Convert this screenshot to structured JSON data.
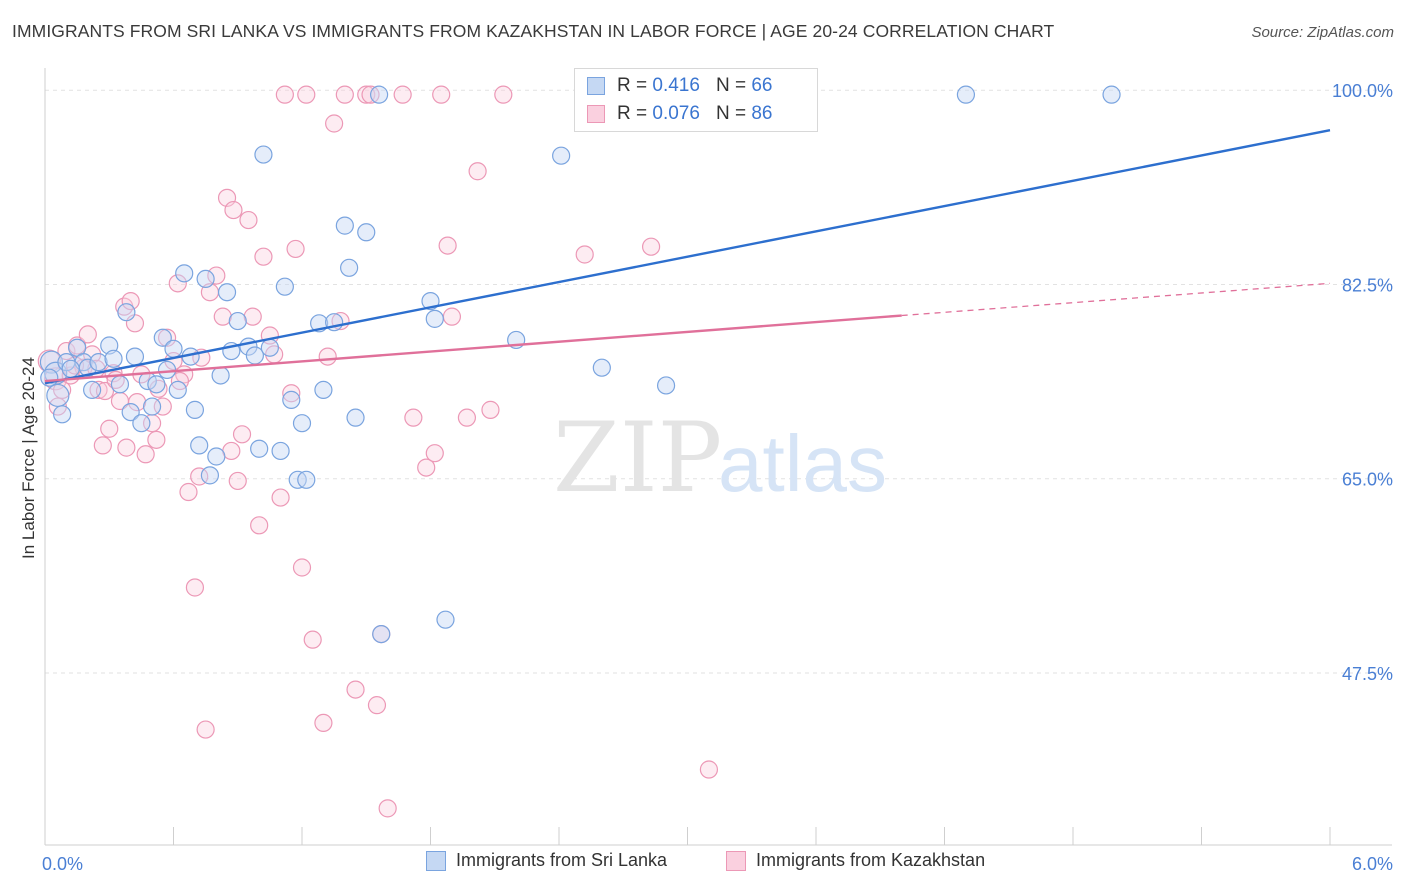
{
  "title": "IMMIGRANTS FROM SRI LANKA VS IMMIGRANTS FROM KAZAKHSTAN IN LABOR FORCE | AGE 20-24 CORRELATION CHART",
  "source": "Source: ZipAtlas.com",
  "watermark": {
    "zip": "ZIP",
    "atlas": "atlas"
  },
  "colors": {
    "blue": "#6f9fe0",
    "blue_line": "#2d6fce",
    "pink": "#ee9ab8",
    "pink_line": "#e0709a",
    "tick_text": "#4a7fd4"
  },
  "legend": {
    "rows": [
      {
        "r_label": "R =",
        "r_value": "0.416",
        "n_label": "N =",
        "n_value": "66"
      },
      {
        "r_label": "R =",
        "r_value": "0.076",
        "n_label": "N =",
        "n_value": "86"
      }
    ]
  },
  "bottom_legend": [
    "Immigrants from Sri Lanka",
    "Immigrants from Kazakhstan"
  ],
  "chart_data": {
    "type": "scatter",
    "xlabel": "",
    "ylabel": "In Labor Force | Age 20-24",
    "xlim": [
      0,
      6.0
    ],
    "ylim": [
      32,
      102
    ],
    "x_tick_labels": [
      "0.0%",
      "6.0%"
    ],
    "y_ticks": [
      47.5,
      65.0,
      82.5,
      100.0
    ],
    "y_tick_labels": [
      "47.5%",
      "65.0%",
      "82.5%",
      "100.0%"
    ],
    "grid": true,
    "series": [
      {
        "name": "Immigrants from Sri Lanka",
        "trend": {
          "x": [
            0.0,
            6.0
          ],
          "y": [
            73.6,
            96.4
          ]
        },
        "points": [
          [
            0.03,
            75.5
          ],
          [
            0.05,
            74.5
          ],
          [
            0.06,
            72.5
          ],
          [
            0.1,
            75.5
          ],
          [
            0.15,
            76.8
          ],
          [
            0.18,
            75.5
          ],
          [
            0.2,
            75.0
          ],
          [
            0.22,
            73.0
          ],
          [
            0.25,
            75.5
          ],
          [
            0.3,
            77.0
          ],
          [
            0.32,
            75.8
          ],
          [
            0.35,
            73.5
          ],
          [
            0.38,
            80.0
          ],
          [
            0.4,
            71.0
          ],
          [
            0.42,
            76.0
          ],
          [
            0.45,
            70.0
          ],
          [
            0.48,
            73.8
          ],
          [
            0.5,
            71.5
          ],
          [
            0.52,
            73.5
          ],
          [
            0.55,
            77.7
          ],
          [
            0.57,
            74.8
          ],
          [
            0.6,
            76.7
          ],
          [
            0.62,
            73.0
          ],
          [
            0.65,
            83.5
          ],
          [
            0.68,
            76.0
          ],
          [
            0.7,
            71.2
          ],
          [
            0.72,
            68.0
          ],
          [
            0.75,
            83.0
          ],
          [
            0.77,
            65.3
          ],
          [
            0.8,
            67.0
          ],
          [
            0.82,
            74.3
          ],
          [
            0.85,
            81.8
          ],
          [
            0.87,
            76.5
          ],
          [
            0.9,
            79.2
          ],
          [
            0.95,
            76.9
          ],
          [
            0.98,
            76.1
          ],
          [
            1.0,
            67.7
          ],
          [
            1.02,
            94.2
          ],
          [
            1.05,
            76.8
          ],
          [
            1.1,
            67.5
          ],
          [
            1.12,
            82.3
          ],
          [
            1.15,
            72.1
          ],
          [
            1.18,
            64.9
          ],
          [
            1.2,
            70.0
          ],
          [
            1.22,
            64.9
          ],
          [
            1.28,
            79.0
          ],
          [
            1.3,
            73.0
          ],
          [
            1.35,
            79.1
          ],
          [
            1.4,
            87.8
          ],
          [
            1.42,
            84.0
          ],
          [
            1.45,
            70.5
          ],
          [
            1.5,
            87.2
          ],
          [
            1.56,
            99.6
          ],
          [
            1.57,
            51.0
          ],
          [
            1.8,
            81.0
          ],
          [
            1.82,
            79.4
          ],
          [
            1.87,
            52.3
          ],
          [
            2.2,
            77.5
          ],
          [
            2.41,
            94.1
          ],
          [
            2.6,
            75.0
          ],
          [
            2.9,
            73.4
          ],
          [
            4.3,
            99.6
          ],
          [
            4.98,
            99.6
          ],
          [
            0.08,
            70.8
          ],
          [
            0.12,
            74.9
          ],
          [
            0.02,
            74.1
          ]
        ]
      },
      {
        "name": "Immigrants from Kazakhstan",
        "trend": {
          "x": [
            0.0,
            4.0
          ],
          "y": [
            73.8,
            79.7
          ]
        },
        "trend_dashed": {
          "x": [
            4.0,
            6.0
          ],
          "y": [
            79.7,
            82.6
          ]
        },
        "points": [
          [
            0.02,
            75.6
          ],
          [
            0.05,
            74.0
          ],
          [
            0.08,
            73.0
          ],
          [
            0.1,
            76.5
          ],
          [
            0.12,
            74.3
          ],
          [
            0.15,
            77.0
          ],
          [
            0.18,
            75.0
          ],
          [
            0.2,
            78.0
          ],
          [
            0.22,
            76.2
          ],
          [
            0.25,
            73.0
          ],
          [
            0.27,
            68.0
          ],
          [
            0.3,
            69.5
          ],
          [
            0.32,
            74.5
          ],
          [
            0.35,
            72.0
          ],
          [
            0.37,
            80.5
          ],
          [
            0.38,
            67.8
          ],
          [
            0.4,
            81.0
          ],
          [
            0.42,
            79.0
          ],
          [
            0.45,
            74.4
          ],
          [
            0.47,
            67.2
          ],
          [
            0.5,
            70.0
          ],
          [
            0.52,
            68.5
          ],
          [
            0.55,
            71.5
          ],
          [
            0.57,
            77.7
          ],
          [
            0.6,
            75.6
          ],
          [
            0.62,
            82.6
          ],
          [
            0.65,
            74.4
          ],
          [
            0.67,
            63.8
          ],
          [
            0.7,
            55.2
          ],
          [
            0.72,
            65.2
          ],
          [
            0.75,
            42.4
          ],
          [
            0.77,
            81.8
          ],
          [
            0.8,
            83.3
          ],
          [
            0.83,
            79.6
          ],
          [
            0.85,
            90.3
          ],
          [
            0.87,
            67.5
          ],
          [
            0.88,
            89.2
          ],
          [
            0.9,
            64.8
          ],
          [
            0.92,
            69.0
          ],
          [
            0.95,
            88.3
          ],
          [
            0.97,
            79.6
          ],
          [
            1.0,
            60.8
          ],
          [
            1.02,
            85.0
          ],
          [
            1.05,
            77.9
          ],
          [
            1.07,
            76.2
          ],
          [
            1.1,
            63.3
          ],
          [
            1.12,
            99.6
          ],
          [
            1.15,
            72.7
          ],
          [
            1.17,
            85.7
          ],
          [
            1.2,
            57.0
          ],
          [
            1.22,
            99.6
          ],
          [
            1.25,
            50.5
          ],
          [
            1.3,
            43.0
          ],
          [
            1.32,
            76.0
          ],
          [
            1.35,
            97.0
          ],
          [
            1.38,
            79.2
          ],
          [
            1.4,
            99.6
          ],
          [
            1.45,
            46.0
          ],
          [
            1.5,
            99.6
          ],
          [
            1.52,
            99.6
          ],
          [
            1.55,
            44.6
          ],
          [
            1.57,
            51.0
          ],
          [
            1.6,
            35.3
          ],
          [
            1.67,
            99.6
          ],
          [
            1.72,
            70.5
          ],
          [
            1.78,
            66.0
          ],
          [
            1.82,
            67.3
          ],
          [
            1.85,
            99.6
          ],
          [
            1.88,
            86.0
          ],
          [
            1.9,
            79.6
          ],
          [
            1.97,
            70.5
          ],
          [
            2.02,
            92.7
          ],
          [
            2.08,
            71.2
          ],
          [
            2.14,
            99.6
          ],
          [
            2.52,
            85.2
          ],
          [
            2.83,
            85.9
          ],
          [
            3.1,
            38.8
          ],
          [
            0.06,
            71.5
          ],
          [
            0.14,
            75.2
          ],
          [
            0.24,
            74.9
          ],
          [
            0.28,
            72.9
          ],
          [
            0.33,
            73.9
          ],
          [
            0.43,
            71.9
          ],
          [
            0.53,
            73.1
          ],
          [
            0.63,
            73.8
          ],
          [
            0.73,
            75.9
          ]
        ]
      }
    ]
  }
}
